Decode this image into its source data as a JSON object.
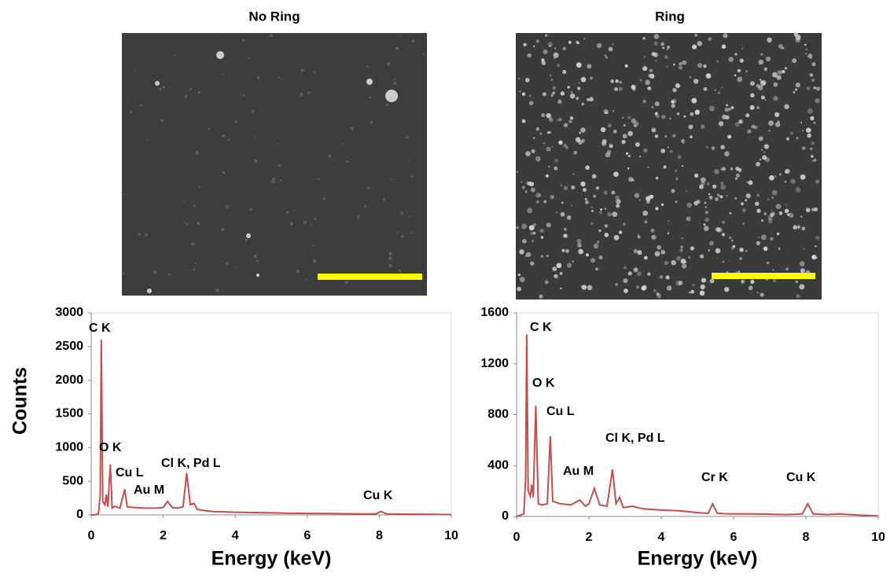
{
  "chart_data": [
    {
      "type": "line",
      "title": "No Ring",
      "xlabel": "Energy (keV)",
      "ylabel": "Counts",
      "x": [
        0,
        0.1,
        0.2,
        0.25,
        0.28,
        0.32,
        0.38,
        0.42,
        0.46,
        0.53,
        0.58,
        0.65,
        0.8,
        0.93,
        1.0,
        1.2,
        1.5,
        1.8,
        2.0,
        2.12,
        2.25,
        2.4,
        2.55,
        2.65,
        2.75,
        2.85,
        2.95,
        3.2,
        3.4,
        3.7,
        4,
        4.5,
        5,
        5.5,
        6,
        6.5,
        7,
        7.5,
        7.9,
        8.05,
        8.2,
        8.6,
        9,
        9.5,
        10
      ],
      "values": [
        0,
        0,
        20,
        300,
        2600,
        200,
        150,
        300,
        120,
        750,
        100,
        130,
        100,
        380,
        120,
        110,
        100,
        100,
        110,
        200,
        110,
        100,
        120,
        620,
        150,
        170,
        80,
        60,
        50,
        45,
        40,
        35,
        30,
        25,
        22,
        20,
        18,
        15,
        15,
        50,
        15,
        12,
        10,
        8,
        5
      ],
      "color": "#c0504d",
      "xlim": [
        0,
        10
      ],
      "xticks": [
        0,
        2,
        4,
        6,
        8,
        10
      ],
      "ylim": [
        0,
        3000
      ],
      "yticks": [
        0,
        500,
        1000,
        1500,
        2000,
        2500,
        3000
      ],
      "annotations": [
        "C K",
        "O K",
        "Cu L",
        "Au M",
        "Cl K, Pd L",
        "Cu K"
      ]
    },
    {
      "type": "line",
      "title": "Ring",
      "xlabel": "Energy (keV)",
      "x": [
        0,
        0.2,
        0.25,
        0.28,
        0.32,
        0.38,
        0.42,
        0.46,
        0.53,
        0.6,
        0.7,
        0.85,
        0.93,
        1.0,
        1.2,
        1.5,
        1.75,
        1.9,
        2.0,
        2.15,
        2.3,
        2.5,
        2.65,
        2.75,
        2.85,
        2.95,
        3.2,
        3.5,
        4,
        4.5,
        5,
        5.3,
        5.42,
        5.55,
        5.9,
        6.5,
        7,
        7.5,
        7.9,
        8.05,
        8.2,
        8.6,
        8.9,
        9.5,
        10
      ],
      "values": [
        0,
        20,
        300,
        1430,
        200,
        160,
        250,
        150,
        870,
        100,
        90,
        100,
        630,
        120,
        100,
        90,
        130,
        80,
        100,
        220,
        90,
        80,
        370,
        100,
        150,
        70,
        80,
        60,
        50,
        45,
        30,
        25,
        100,
        25,
        20,
        20,
        18,
        15,
        20,
        100,
        20,
        15,
        20,
        10,
        5
      ],
      "color": "#c0504d",
      "xlim": [
        0,
        10
      ],
      "xticks": [
        0,
        2,
        4,
        6,
        8,
        10
      ],
      "ylim": [
        0,
        1600
      ],
      "yticks": [
        0,
        400,
        800,
        1200,
        1600
      ],
      "annotations": [
        "C K",
        "O K",
        "Cu L",
        "Au M",
        "Cl K, Pd L",
        "Cr K",
        "Cu K"
      ]
    }
  ]
}
